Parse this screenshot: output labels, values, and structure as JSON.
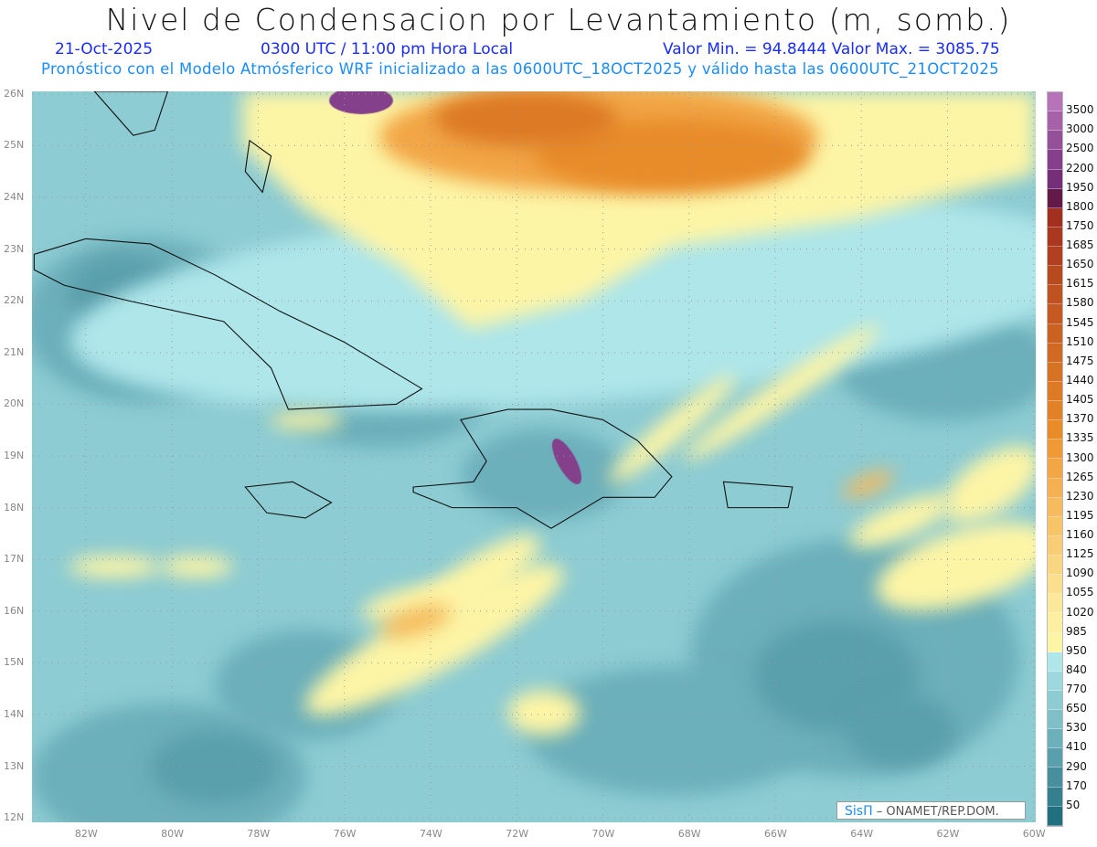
{
  "header": {
    "title": "Nivel de Condensacion por Levantamiento (m, somb.)",
    "date": "21-Oct-2025",
    "time": "0300 UTC / 11:00 pm Hora Local",
    "minmax": "Valor Min. = 94.8444   Valor Max. = 3085.75",
    "subtitle": "Pronóstico con el Modelo Atmósferico WRF inicializado a las 0600UTC_18OCT2025 y válido hasta las  0600UTC_21OCT2025"
  },
  "axes": {
    "lat_labels": [
      "26N",
      "25N",
      "24N",
      "23N",
      "22N",
      "21N",
      "20N",
      "19N",
      "18N",
      "17N",
      "16N",
      "15N",
      "14N",
      "13N",
      "12N"
    ],
    "lon_labels": [
      "82W",
      "80W",
      "78W",
      "76W",
      "74W",
      "72W",
      "70W",
      "68W",
      "66W",
      "64W",
      "62W",
      "60W"
    ]
  },
  "colorbar": {
    "labels": [
      "3500",
      "3000",
      "2500",
      "2200",
      "1950",
      "1800",
      "1750",
      "1685",
      "1650",
      "1615",
      "1580",
      "1545",
      "1510",
      "1475",
      "1440",
      "1405",
      "1370",
      "1335",
      "1300",
      "1265",
      "1230",
      "1195",
      "1160",
      "1125",
      "1090",
      "1055",
      "1020",
      "985",
      "950",
      "840",
      "770",
      "650",
      "530",
      "410",
      "290",
      "170",
      "50"
    ],
    "colors": [
      "#b673ba",
      "#a661a8",
      "#95509a",
      "#84408a",
      "#742f78",
      "#641a48",
      "#a1301f",
      "#a9381f",
      "#b0401f",
      "#b84a20",
      "#be5220",
      "#c45a21",
      "#ca6222",
      "#d06a22",
      "#d67224",
      "#dc7a25",
      "#e28226",
      "#e88c2a",
      "#ef9a34",
      "#f2a646",
      "#f4b052",
      "#f6bb5e",
      "#f7c46a",
      "#f8cd76",
      "#f9d682",
      "#fadf8e",
      "#fbe89a",
      "#fcefa2",
      "#fdf5a6",
      "#aee6ea",
      "#9dd8de",
      "#8dccd3",
      "#7ebfc8",
      "#6cb0bb",
      "#5a9fac",
      "#488f9d",
      "#35808f",
      "#22707f"
    ]
  },
  "credit": {
    "logo": "SisΠ",
    "text": " –  ONAMET/REP.DOM."
  }
}
